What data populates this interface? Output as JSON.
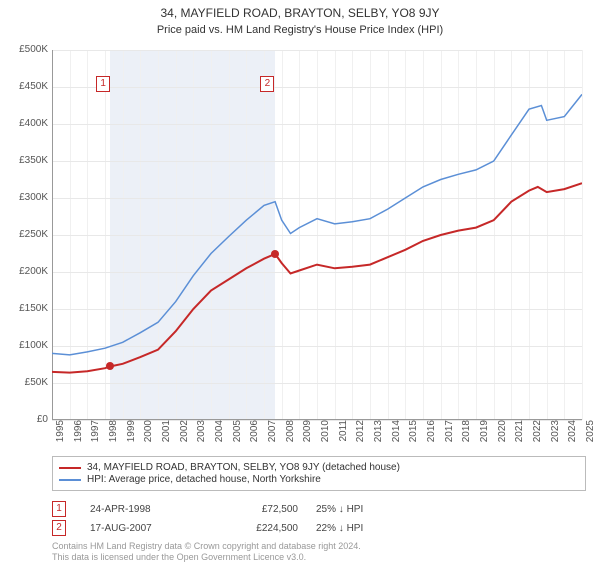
{
  "title": "34, MAYFIELD ROAD, BRAYTON, SELBY, YO8 9JY",
  "subtitle": "Price paid vs. HM Land Registry's House Price Index (HPI)",
  "chart": {
    "type": "line",
    "xlim": [
      1995,
      2025
    ],
    "ylim": [
      0,
      500000
    ],
    "ytick_step": 50000,
    "ytick_labels": [
      "£0",
      "£50K",
      "£100K",
      "£150K",
      "£200K",
      "£250K",
      "£300K",
      "£350K",
      "£400K",
      "£450K",
      "£500K"
    ],
    "xticks": [
      1995,
      1996,
      1997,
      1998,
      1999,
      2000,
      2001,
      2002,
      2003,
      2004,
      2005,
      2006,
      2007,
      2008,
      2009,
      2010,
      2011,
      2012,
      2013,
      2014,
      2015,
      2016,
      2017,
      2018,
      2019,
      2020,
      2021,
      2022,
      2023,
      2024,
      2025
    ],
    "background_color": "#ffffff",
    "grid_color": "#e8e8e8",
    "axis_color": "#999999",
    "shaded_region": {
      "from": 1998.31,
      "to": 2007.63,
      "color": "#ecf0f7"
    },
    "series": [
      {
        "name": "34, MAYFIELD ROAD, BRAYTON, SELBY, YO8 9JY (detached house)",
        "color": "#c62828",
        "width": 2,
        "data": [
          [
            1995,
            65000
          ],
          [
            1996,
            64000
          ],
          [
            1997,
            66000
          ],
          [
            1998,
            70000
          ],
          [
            1998.31,
            72500
          ],
          [
            1999,
            76000
          ],
          [
            2000,
            85000
          ],
          [
            2001,
            95000
          ],
          [
            2002,
            120000
          ],
          [
            2003,
            150000
          ],
          [
            2004,
            175000
          ],
          [
            2005,
            190000
          ],
          [
            2006,
            205000
          ],
          [
            2007,
            218000
          ],
          [
            2007.63,
            224500
          ],
          [
            2008,
            212000
          ],
          [
            2008.5,
            198000
          ],
          [
            2009,
            202000
          ],
          [
            2010,
            210000
          ],
          [
            2011,
            205000
          ],
          [
            2012,
            207000
          ],
          [
            2013,
            210000
          ],
          [
            2014,
            220000
          ],
          [
            2015,
            230000
          ],
          [
            2016,
            242000
          ],
          [
            2017,
            250000
          ],
          [
            2018,
            256000
          ],
          [
            2019,
            260000
          ],
          [
            2020,
            270000
          ],
          [
            2021,
            295000
          ],
          [
            2022,
            310000
          ],
          [
            2022.5,
            315000
          ],
          [
            2023,
            308000
          ],
          [
            2024,
            312000
          ],
          [
            2025,
            320000
          ]
        ]
      },
      {
        "name": "HPI: Average price, detached house, North Yorkshire",
        "color": "#5b8fd6",
        "width": 1.5,
        "data": [
          [
            1995,
            90000
          ],
          [
            1996,
            88000
          ],
          [
            1997,
            92000
          ],
          [
            1998,
            97000
          ],
          [
            1999,
            105000
          ],
          [
            2000,
            118000
          ],
          [
            2001,
            132000
          ],
          [
            2002,
            160000
          ],
          [
            2003,
            195000
          ],
          [
            2004,
            225000
          ],
          [
            2005,
            248000
          ],
          [
            2006,
            270000
          ],
          [
            2007,
            290000
          ],
          [
            2007.63,
            295000
          ],
          [
            2008,
            270000
          ],
          [
            2008.5,
            252000
          ],
          [
            2009,
            260000
          ],
          [
            2010,
            272000
          ],
          [
            2011,
            265000
          ],
          [
            2012,
            268000
          ],
          [
            2013,
            272000
          ],
          [
            2014,
            285000
          ],
          [
            2015,
            300000
          ],
          [
            2016,
            315000
          ],
          [
            2017,
            325000
          ],
          [
            2018,
            332000
          ],
          [
            2019,
            338000
          ],
          [
            2020,
            350000
          ],
          [
            2021,
            385000
          ],
          [
            2022,
            420000
          ],
          [
            2022.7,
            425000
          ],
          [
            2023,
            405000
          ],
          [
            2024,
            410000
          ],
          [
            2025,
            440000
          ]
        ]
      }
    ],
    "markers": [
      {
        "id": "1",
        "color": "#c62828",
        "x": 1998.31,
        "y": 72500,
        "box_x": 1997.5,
        "box_y": 465000
      },
      {
        "id": "2",
        "color": "#c62828",
        "x": 2007.63,
        "y": 224500,
        "box_x": 2006.8,
        "box_y": 465000
      }
    ]
  },
  "legend": {
    "items": [
      {
        "label": "34, MAYFIELD ROAD, BRAYTON, SELBY, YO8 9JY (detached house)",
        "color": "#c62828"
      },
      {
        "label": "HPI: Average price, detached house, North Yorkshire",
        "color": "#5b8fd6"
      }
    ]
  },
  "events": [
    {
      "id": "1",
      "color": "#c62828",
      "date": "24-APR-1998",
      "price": "£72,500",
      "delta": "25% ↓ HPI"
    },
    {
      "id": "2",
      "color": "#c62828",
      "date": "17-AUG-2007",
      "price": "£224,500",
      "delta": "22% ↓ HPI"
    }
  ],
  "footnote_line1": "Contains HM Land Registry data © Crown copyright and database right 2024.",
  "footnote_line2": "This data is licensed under the Open Government Licence v3.0."
}
